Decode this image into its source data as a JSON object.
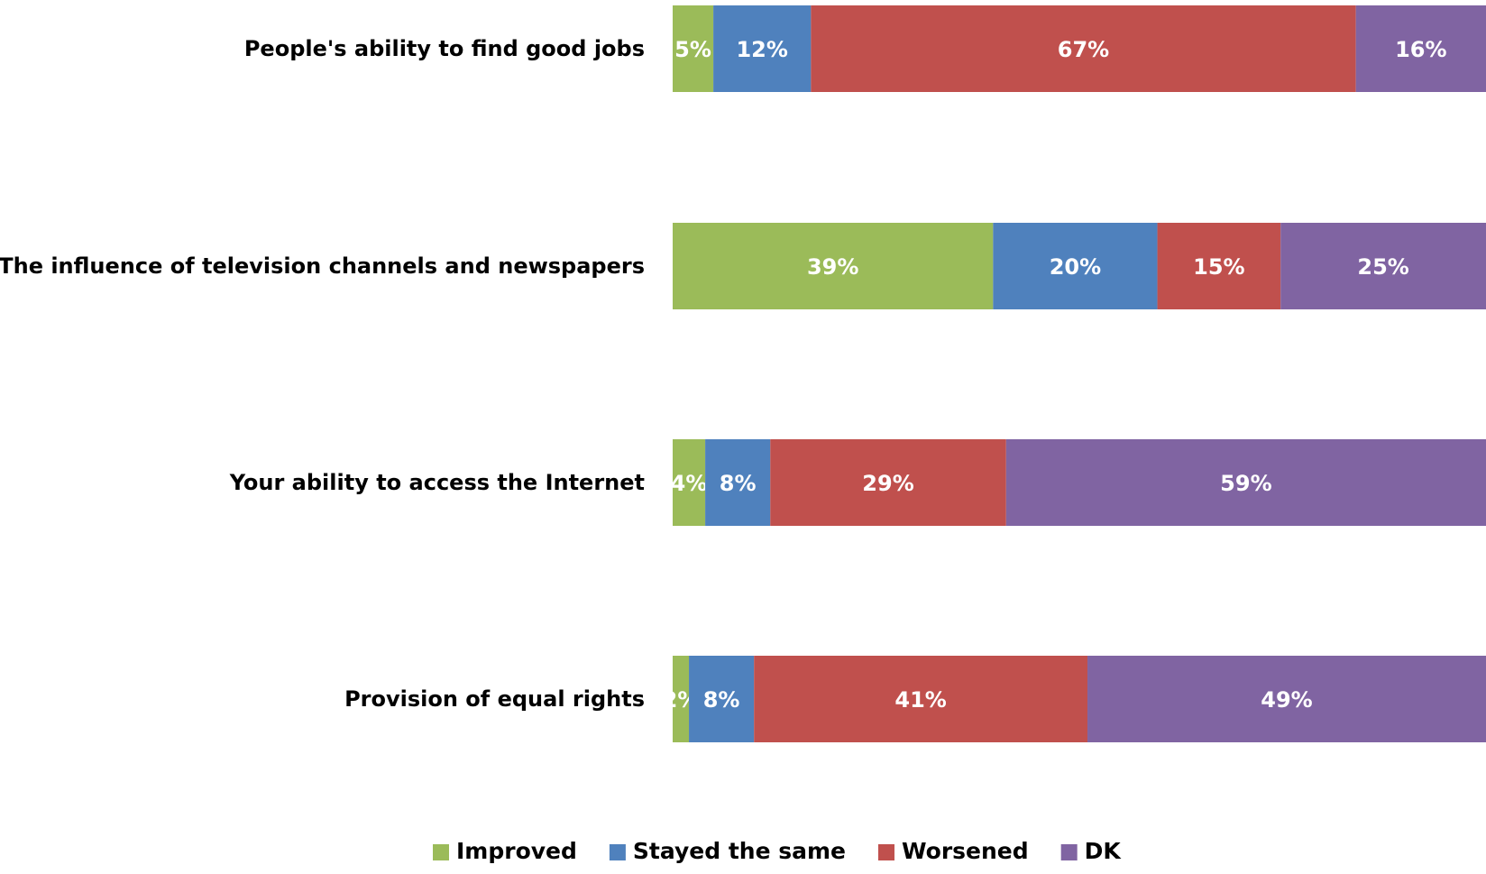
{
  "chart_data": {
    "type": "bar",
    "orientation": "horizontal",
    "stacked": true,
    "percent_stacked": true,
    "categories": [
      "People's ability to find good jobs",
      "The influence of television channels and newspapers",
      "Your ability to access the Internet",
      "Provision of equal rights"
    ],
    "series": [
      {
        "name": "Improved",
        "color": "#9BBB59",
        "values": [
          5,
          39,
          4,
          2
        ],
        "labels": [
          "5%",
          "39%",
          "4%",
          "2%"
        ]
      },
      {
        "name": "Stayed the same",
        "color": "#4F81BD",
        "values": [
          12,
          20,
          8,
          8
        ],
        "labels": [
          "12%",
          "20%",
          "8%",
          "8%"
        ]
      },
      {
        "name": "Worsened",
        "color": "#C0504D",
        "values": [
          67,
          15,
          29,
          41
        ],
        "labels": [
          "67%",
          "15%",
          "29%",
          "41%"
        ]
      },
      {
        "name": "DK",
        "color": "#8064A2",
        "values": [
          16,
          25,
          59,
          49
        ],
        "labels": [
          "16%",
          "25%",
          "59%",
          "49%"
        ]
      }
    ],
    "title": "",
    "xlabel": "",
    "ylabel": "",
    "grid": false,
    "legend_position": "bottom"
  }
}
